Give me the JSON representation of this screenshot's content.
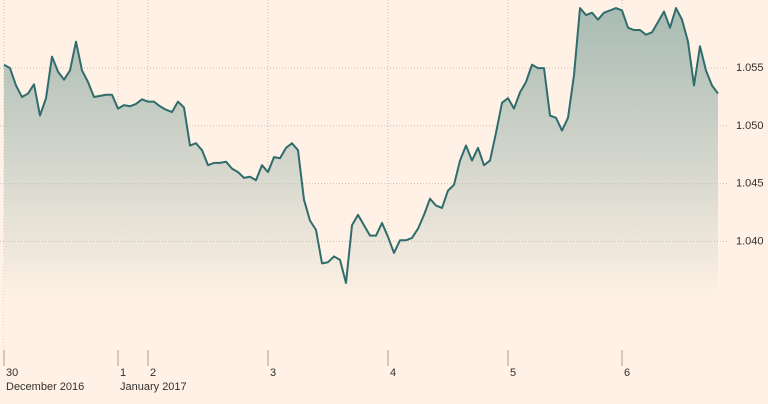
{
  "chart_data": {
    "type": "area-line",
    "color": "#2f6d6d",
    "fill_color": "#9db4ac",
    "background": "#fff1e5",
    "grid": true,
    "ylim": [
      1.0306,
      1.0609
    ],
    "yticks": [
      {
        "value": 1.04,
        "label": "1.040"
      },
      {
        "value": 1.045,
        "label": "1.045"
      },
      {
        "value": 1.05,
        "label": "1.050"
      },
      {
        "value": 1.055,
        "label": "1.055"
      }
    ],
    "categories": [
      "30",
      null,
      null,
      null,
      null,
      null,
      null,
      null,
      null,
      null,
      null,
      null,
      null,
      null,
      null,
      null,
      null,
      null,
      null,
      "1",
      null,
      null,
      null,
      null,
      "2",
      null,
      null,
      null,
      null,
      null,
      null,
      null,
      null,
      null,
      null,
      null,
      null,
      null,
      null,
      null,
      null,
      null,
      null,
      null,
      "3",
      null,
      null,
      null,
      null,
      null,
      null,
      null,
      null,
      null,
      null,
      null,
      null,
      null,
      null,
      null,
      null,
      null,
      null,
      null,
      "4",
      null,
      null,
      null,
      null,
      null,
      null,
      null,
      null,
      null,
      null,
      null,
      null,
      null,
      null,
      null,
      null,
      null,
      null,
      null,
      "5",
      null,
      null,
      null,
      null,
      null,
      null,
      null,
      null,
      null,
      null,
      null,
      null,
      null,
      null,
      null,
      null,
      null,
      null,
      "6",
      null,
      null,
      null,
      null,
      null,
      null,
      null,
      null,
      null,
      null,
      null,
      null,
      null,
      null,
      null,
      null
    ],
    "x_sublabels": [
      "December 2016",
      null,
      null,
      null,
      null,
      null,
      null,
      null,
      null,
      null,
      null,
      null,
      null,
      null,
      null,
      null,
      null,
      null,
      null,
      "January 2017",
      null,
      null,
      null,
      null,
      null,
      null,
      null,
      null,
      null,
      null,
      null,
      null,
      null,
      null,
      null,
      null,
      null,
      null,
      null,
      null,
      null,
      null,
      null,
      null,
      null,
      null,
      null,
      null,
      null,
      null,
      null,
      null,
      null,
      null,
      null,
      null,
      null,
      null,
      null,
      null,
      null,
      null,
      null,
      null,
      null,
      null,
      null,
      null,
      null,
      null,
      null,
      null,
      null,
      null,
      null,
      null,
      null,
      null,
      null,
      null,
      null,
      null,
      null,
      null,
      null,
      null,
      null,
      null,
      null,
      null,
      null,
      null,
      null,
      null,
      null,
      null,
      null,
      null,
      null,
      null,
      null,
      null,
      null,
      null,
      null,
      null,
      null,
      null,
      null,
      null,
      null,
      null,
      null,
      null,
      null,
      null,
      null,
      null,
      null,
      null
    ],
    "values": [
      1.0553,
      1.055,
      1.0535,
      1.0525,
      1.0528,
      1.0536,
      1.0509,
      1.0524,
      1.056,
      1.0547,
      1.054,
      1.0548,
      1.0573,
      1.0548,
      1.0538,
      1.0525,
      1.0526,
      1.0527,
      1.0527,
      1.0515,
      1.0518,
      1.0517,
      1.0519,
      1.0523,
      1.0521,
      1.0521,
      1.0517,
      1.0514,
      1.0512,
      1.0521,
      1.0516,
      1.0483,
      1.0485,
      1.0479,
      1.0466,
      1.0468,
      1.0468,
      1.0469,
      1.0463,
      1.046,
      1.0455,
      1.0456,
      1.0453,
      1.0466,
      1.046,
      1.0473,
      1.0472,
      1.0481,
      1.0485,
      1.0479,
      1.0436,
      1.0418,
      1.041,
      1.0381,
      1.0382,
      1.0387,
      1.0384,
      1.0364,
      1.0414,
      1.0423,
      1.0414,
      1.0405,
      1.0405,
      1.0416,
      1.0404,
      1.039,
      1.0401,
      1.0401,
      1.0403,
      1.0411,
      1.0423,
      1.0437,
      1.0431,
      1.0429,
      1.0444,
      1.0449,
      1.047,
      1.0483,
      1.047,
      1.0481,
      1.0466,
      1.047,
      1.0494,
      1.052,
      1.0524,
      1.0515,
      1.0529,
      1.0538,
      1.0553,
      1.055,
      1.055,
      1.0509,
      1.0507,
      1.0496,
      1.0507,
      1.0544,
      1.0602,
      1.0596,
      1.0598,
      1.0592,
      1.0598,
      1.06,
      1.0602,
      1.06,
      1.0585,
      1.0583,
      1.0583,
      1.0579,
      1.0581,
      1.059,
      1.0599,
      1.0585,
      1.0602,
      1.0592,
      1.0573,
      1.0535,
      1.0569,
      1.0548,
      1.0535,
      1.0528
    ]
  }
}
